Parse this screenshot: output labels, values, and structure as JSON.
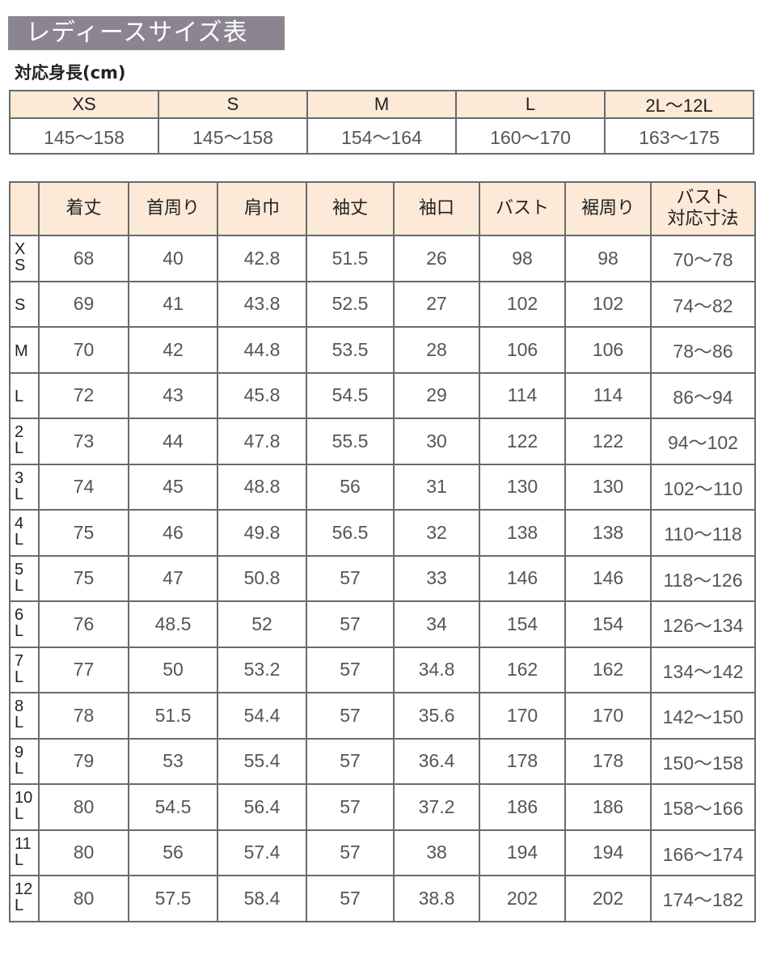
{
  "title": "レディースサイズ表",
  "height_label": "対応身長(cm)",
  "height_table": {
    "sizes": [
      "XS",
      "S",
      "M",
      "L",
      "2L〜12L"
    ],
    "heights": [
      "145〜158",
      "145〜158",
      "154〜164",
      "160〜170",
      "163〜175"
    ]
  },
  "size_table": {
    "headers": [
      "",
      "着丈",
      "首周り",
      "肩巾",
      "袖丈",
      "袖口",
      "バスト",
      "裾周り",
      "バスト\n対応寸法"
    ],
    "rows": [
      {
        "size": "XS",
        "values": [
          "68",
          "40",
          "42.8",
          "51.5",
          "26",
          "98",
          "98",
          "70〜78"
        ]
      },
      {
        "size": "S",
        "values": [
          "69",
          "41",
          "43.8",
          "52.5",
          "27",
          "102",
          "102",
          "74〜82"
        ]
      },
      {
        "size": "M",
        "values": [
          "70",
          "42",
          "44.8",
          "53.5",
          "28",
          "106",
          "106",
          "78〜86"
        ]
      },
      {
        "size": "L",
        "values": [
          "72",
          "43",
          "45.8",
          "54.5",
          "29",
          "114",
          "114",
          "86〜94"
        ]
      },
      {
        "size": "2L",
        "values": [
          "73",
          "44",
          "47.8",
          "55.5",
          "30",
          "122",
          "122",
          "94〜102"
        ]
      },
      {
        "size": "3L",
        "values": [
          "74",
          "45",
          "48.8",
          "56",
          "31",
          "130",
          "130",
          "102〜110"
        ]
      },
      {
        "size": "4L",
        "values": [
          "75",
          "46",
          "49.8",
          "56.5",
          "32",
          "138",
          "138",
          "110〜118"
        ]
      },
      {
        "size": "5L",
        "values": [
          "75",
          "47",
          "50.8",
          "57",
          "33",
          "146",
          "146",
          "118〜126"
        ]
      },
      {
        "size": "6L",
        "values": [
          "76",
          "48.5",
          "52",
          "57",
          "34",
          "154",
          "154",
          "126〜134"
        ]
      },
      {
        "size": "7L",
        "values": [
          "77",
          "50",
          "53.2",
          "57",
          "34.8",
          "162",
          "162",
          "134〜142"
        ]
      },
      {
        "size": "8L",
        "values": [
          "78",
          "51.5",
          "54.4",
          "57",
          "35.6",
          "170",
          "170",
          "142〜150"
        ]
      },
      {
        "size": "9L",
        "values": [
          "79",
          "53",
          "55.4",
          "57",
          "36.4",
          "178",
          "178",
          "150〜158"
        ]
      },
      {
        "size": "10L",
        "values": [
          "80",
          "54.5",
          "56.4",
          "57",
          "37.2",
          "186",
          "186",
          "158〜166"
        ]
      },
      {
        "size": "11L",
        "values": [
          "80",
          "56",
          "57.4",
          "57",
          "38",
          "194",
          "194",
          "166〜174"
        ]
      },
      {
        "size": "12L",
        "values": [
          "80",
          "57.5",
          "58.4",
          "57",
          "38.8",
          "202",
          "202",
          "174〜182"
        ]
      }
    ]
  },
  "colors": {
    "title_bg": "#8a8590",
    "header_bg": "#fce9d7",
    "border": "#6a6a6a"
  }
}
